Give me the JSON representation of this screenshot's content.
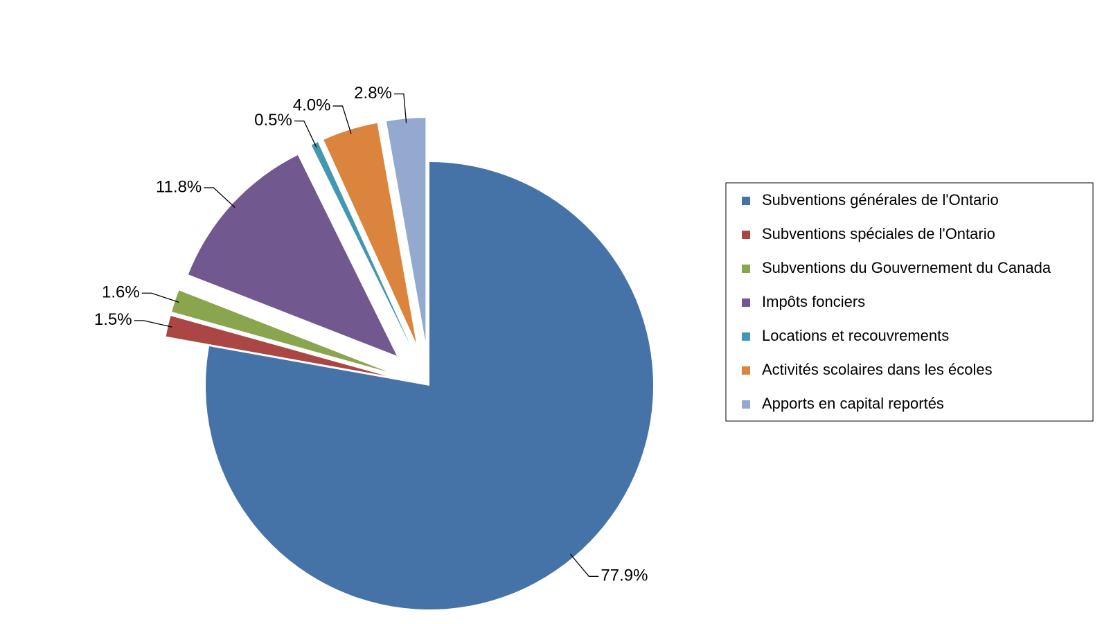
{
  "chart_data": {
    "type": "pie",
    "title": "",
    "legend_position": "right",
    "slices": [
      {
        "name": "Subventions générales de l'Ontario",
        "value": 77.9,
        "label": "77.9%",
        "color": "#4572A7",
        "exploded": false
      },
      {
        "name": "Subventions spéciales  de l'Ontario",
        "value": 1.5,
        "label": "1.5%",
        "color": "#AA4643",
        "exploded": true
      },
      {
        "name": "Subventions du Gouvernement du Canada",
        "value": 1.6,
        "label": "1.6%",
        "color": "#89A54E",
        "exploded": true
      },
      {
        "name": "Impôts fonciers",
        "value": 11.8,
        "label": "11.8%",
        "color": "#71588F",
        "exploded": true
      },
      {
        "name": "Locations et recouvrements",
        "value": 0.5,
        "label": "0.5%",
        "color": "#4198AF",
        "exploded": true
      },
      {
        "name": "Activités scolaires dans les écoles",
        "value": 4.0,
        "label": "4.0%",
        "color": "#DB843D",
        "exploded": true
      },
      {
        "name": "Apports en capital reportés",
        "value": 2.8,
        "label": "2.8%",
        "color": "#93A9CF",
        "exploded": true
      }
    ]
  }
}
